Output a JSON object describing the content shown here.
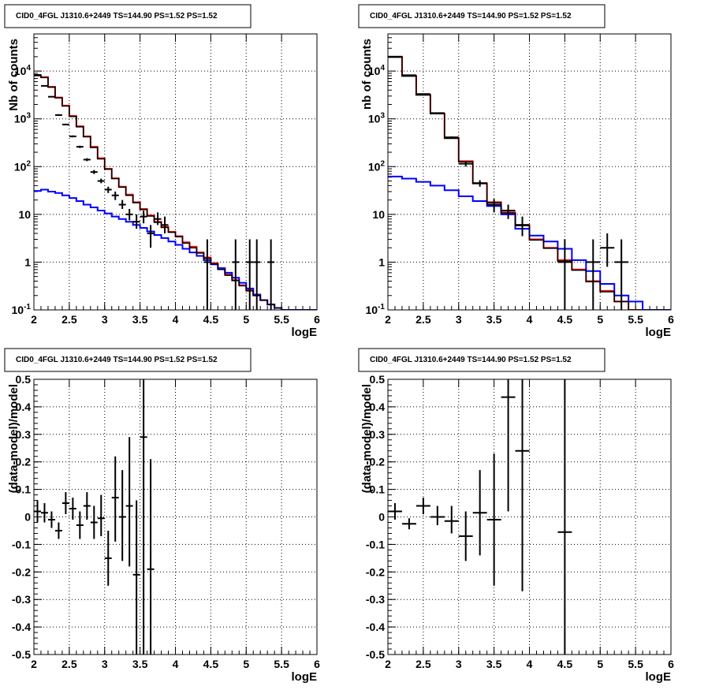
{
  "chart_data": [
    {
      "id": "top-left",
      "type": "line",
      "title": "CID0_4FGL J1310.6+2449 TS=144.90 PS=1.52 PS=1.52",
      "xlabel": "logE",
      "ylabel": "Nb of counts",
      "xlim": [
        2,
        6
      ],
      "ylim": [
        0.1,
        60000
      ],
      "yscale": "log",
      "xticks": [
        "2",
        "2.5",
        "3",
        "3.5",
        "4",
        "4.5",
        "5",
        "5.5",
        "6"
      ],
      "yticks": [
        "10^-1",
        "1",
        "10",
        "10^2",
        "10^3",
        "10^4"
      ],
      "grid": true,
      "binwidth": 0.1,
      "series": [
        {
          "color": "#ff0000",
          "role": "total-model",
          "x": [
            2.0,
            2.1,
            2.2,
            2.3,
            2.4,
            2.5,
            2.6,
            2.7,
            2.8,
            2.9,
            3.0,
            3.1,
            3.2,
            3.3,
            3.4,
            3.5,
            3.6,
            3.7,
            3.8,
            3.9,
            4.0,
            4.1,
            4.2,
            4.3,
            4.4,
            4.5,
            4.6,
            4.7,
            4.8,
            4.9,
            5.0,
            5.1,
            5.2,
            5.3,
            5.4,
            5.5,
            5.6,
            5.7,
            5.8,
            5.9
          ],
          "values": [
            8200,
            7500,
            4700,
            2800,
            1900,
            1150,
            700,
            430,
            260,
            150,
            90,
            57,
            38,
            26,
            18,
            13,
            9.5,
            7,
            5.5,
            4.3,
            3.5,
            2.6,
            2.1,
            1.6,
            1.25,
            0.95,
            0.72,
            0.55,
            0.42,
            0.33,
            0.26,
            0.2,
            0.16,
            0.13,
            0.11,
            0.1,
            0.1,
            0.1,
            0.1,
            0.1
          ]
        },
        {
          "color": "#0000ff",
          "role": "background",
          "x": [
            2.0,
            2.1,
            2.2,
            2.3,
            2.4,
            2.5,
            2.6,
            2.7,
            2.8,
            2.9,
            3.0,
            3.1,
            3.2,
            3.3,
            3.4,
            3.5,
            3.6,
            3.7,
            3.8,
            3.9,
            4.0,
            4.1,
            4.2,
            4.3,
            4.4,
            4.5,
            4.6,
            4.7,
            4.8,
            4.9,
            5.0,
            5.1,
            5.2,
            5.3,
            5.4,
            5.5,
            5.6,
            5.7,
            5.8,
            5.9
          ],
          "values": [
            31,
            33,
            30,
            28,
            25,
            22,
            19,
            16,
            14,
            12,
            10.5,
            9,
            8,
            7,
            6,
            5.2,
            4.4,
            3.7,
            3.2,
            2.7,
            2.3,
            1.9,
            1.6,
            1.35,
            1.1,
            0.9,
            0.75,
            0.6,
            0.47,
            0.37,
            0.28,
            0.21,
            0.16,
            0.13,
            0.11,
            0.1,
            0.1,
            0.1,
            0.1,
            0.1
          ]
        },
        {
          "color": "#000000",
          "role": "data-curve",
          "x": [
            2.0,
            2.1,
            2.2,
            2.3,
            2.4,
            2.5,
            2.6,
            2.7,
            2.8,
            2.9,
            3.0,
            3.1,
            3.2,
            3.3,
            3.4,
            3.5,
            3.6,
            3.7,
            3.8,
            3.9,
            4.0,
            4.1,
            4.2,
            4.3,
            4.4,
            4.5,
            4.6,
            4.7,
            4.8,
            4.9,
            5.0,
            5.1,
            5.2,
            5.3,
            5.4,
            5.5,
            5.6,
            5.7,
            5.8,
            5.9
          ],
          "values": [
            8000,
            7300,
            4600,
            2750,
            1850,
            1120,
            680,
            420,
            250,
            145,
            88,
            56,
            37,
            25,
            17.5,
            12.6,
            9.2,
            6.8,
            5.3,
            4.2,
            3.4,
            2.5,
            2.0,
            1.55,
            1.2,
            0.92,
            0.7,
            0.53,
            0.41,
            0.32,
            0.25,
            0.2,
            0.16,
            0.13,
            0.11,
            0.1,
            0.1,
            0.1,
            0.1,
            0.1
          ]
        }
      ],
      "points": {
        "x": [
          2.05,
          2.15,
          2.25,
          2.35,
          2.45,
          2.55,
          2.65,
          2.75,
          2.85,
          2.95,
          3.05,
          3.15,
          3.25,
          3.35,
          3.45,
          3.55,
          3.65,
          3.75,
          3.85,
          4.45,
          4.85,
          5.05,
          5.15,
          5.35
        ],
        "y": [
          8300,
          4900,
          2900,
          1200,
          760,
          430,
          260,
          140,
          77,
          50,
          33,
          25,
          16,
          10,
          7,
          9,
          4,
          8,
          6,
          1,
          1,
          1,
          1,
          1
        ],
        "ylow": [
          8100,
          4800,
          2850,
          1150,
          730,
          410,
          245,
          130,
          70,
          45,
          28,
          20,
          13,
          7.5,
          5,
          6.5,
          2,
          6,
          4,
          0.1,
          0.1,
          0.1,
          0.1,
          0.1
        ],
        "yhigh": [
          8500,
          5000,
          2950,
          1250,
          790,
          450,
          275,
          150,
          85,
          56,
          38,
          30,
          20,
          13,
          10,
          12,
          6,
          11,
          9,
          3,
          3,
          3,
          3,
          3
        ]
      }
    },
    {
      "id": "top-right",
      "type": "line",
      "title": "CID0_4FGL J1310.6+2449 TS=144.90 PS=1.52 PS=1.52",
      "xlabel": "logE",
      "ylabel": "nb of counts",
      "xlim": [
        2,
        6
      ],
      "ylim": [
        0.1,
        60000
      ],
      "yscale": "log",
      "xticks": [
        "2",
        "2.5",
        "3",
        "3.5",
        "4",
        "4.5",
        "5",
        "5.5",
        "6"
      ],
      "yticks": [
        "10^-1",
        "1",
        "10",
        "10^2",
        "10^3",
        "10^4"
      ],
      "grid": true,
      "binwidth": 0.2,
      "series": [
        {
          "color": "#ff0000",
          "role": "total-model",
          "x": [
            2.0,
            2.2,
            2.4,
            2.6,
            2.8,
            3.0,
            3.2,
            3.4,
            3.6,
            3.8,
            4.0,
            4.2,
            4.4,
            4.6,
            4.8,
            5.0,
            5.2,
            5.4,
            5.6,
            5.8
          ],
          "values": [
            20000,
            8000,
            3200,
            1300,
            400,
            130,
            45,
            18,
            11,
            6,
            3,
            2,
            1.1,
            0.7,
            0.4,
            0.25,
            0.15,
            0.1,
            0.1,
            0.1
          ]
        },
        {
          "color": "#0000ff",
          "role": "background",
          "x": [
            2.0,
            2.2,
            2.4,
            2.6,
            2.8,
            3.0,
            3.2,
            3.4,
            3.6,
            3.8,
            4.0,
            4.2,
            4.4,
            4.6,
            4.8,
            5.0,
            5.2,
            5.4,
            5.6,
            5.8
          ],
          "values": [
            62,
            56,
            48,
            40,
            32,
            24,
            19,
            15,
            10,
            5,
            3.6,
            2.7,
            1.9,
            1.1,
            0.65,
            0.35,
            0.2,
            0.15,
            0.1,
            0.1
          ]
        },
        {
          "color": "#000000",
          "role": "data-curve",
          "x": [
            2.0,
            2.2,
            2.4,
            2.6,
            2.8,
            3.0,
            3.2,
            3.4,
            3.6,
            3.8,
            4.0,
            4.2,
            4.4,
            4.6,
            4.8,
            5.0,
            5.2,
            5.4,
            5.6,
            5.8
          ],
          "values": [
            19500,
            7800,
            3150,
            1280,
            390,
            126,
            44,
            17.5,
            10.7,
            5.8,
            2.9,
            1.95,
            1.05,
            0.68,
            0.39,
            0.24,
            0.15,
            0.1,
            0.1,
            0.1
          ]
        }
      ],
      "points": {
        "x": [
          2.1,
          2.3,
          2.5,
          2.7,
          2.9,
          3.1,
          3.3,
          3.5,
          3.7,
          3.9,
          4.5,
          4.9,
          5.1,
          5.3
        ],
        "y": [
          20000,
          8200,
          3300,
          1320,
          410,
          115,
          45,
          16,
          12,
          6,
          1,
          1,
          2,
          1
        ],
        "ylow": [
          19700,
          8000,
          3200,
          1280,
          390,
          100,
          38,
          11,
          8,
          3.5,
          0.1,
          0.1,
          0.8,
          0.1
        ],
        "yhigh": [
          20300,
          8400,
          3400,
          1360,
          430,
          130,
          52,
          21,
          16,
          9,
          3,
          3,
          4,
          3
        ]
      }
    },
    {
      "id": "bottom-left",
      "type": "scatter",
      "title": "CID0_4FGL J1310.6+2449 TS=144.90 PS=1.52 PS=1.52",
      "xlabel": "logE",
      "ylabel": "(data-model)/model",
      "xlim": [
        2,
        6
      ],
      "ylim": [
        -0.5,
        0.5
      ],
      "xticks": [
        "2",
        "2.5",
        "3",
        "3.5",
        "4",
        "4.5",
        "5",
        "5.5",
        "6"
      ],
      "yticks": [
        "-0.5",
        "-0.4",
        "-0.3",
        "-0.2",
        "-0.1",
        "0",
        "0.1",
        "0.2",
        "0.3",
        "0.4",
        "0.5"
      ],
      "grid": true,
      "binwidth": 0.1,
      "points": {
        "x": [
          2.05,
          2.15,
          2.25,
          2.35,
          2.45,
          2.55,
          2.65,
          2.75,
          2.85,
          2.95,
          3.05,
          3.15,
          3.25,
          3.35,
          3.45,
          3.55,
          3.65
        ],
        "y": [
          0.02,
          0.015,
          -0.01,
          -0.05,
          0.05,
          0.03,
          -0.03,
          0.04,
          -0.02,
          -0.005,
          -0.15,
          0.07,
          0.0,
          0.04,
          -0.21,
          0.29,
          -0.19
        ],
        "ylow": [
          -0.02,
          -0.02,
          -0.04,
          -0.08,
          0.01,
          -0.01,
          -0.08,
          -0.01,
          -0.08,
          -0.07,
          -0.25,
          -0.09,
          -0.16,
          -0.18,
          -0.5,
          -0.5,
          -0.5
        ],
        "yhigh": [
          0.06,
          0.05,
          0.02,
          -0.02,
          0.09,
          0.07,
          0.02,
          0.09,
          0.04,
          0.08,
          -0.05,
          0.22,
          0.17,
          0.29,
          0.06,
          0.5,
          0.21
        ]
      }
    },
    {
      "id": "bottom-right",
      "type": "scatter",
      "title": "CID0_4FGL J1310.6+2449 TS=144.90 PS=1.52 PS=1.52",
      "xlabel": "logE",
      "ylabel": "(data-model)/model",
      "xlim": [
        2,
        6
      ],
      "ylim": [
        -0.5,
        0.5
      ],
      "xticks": [
        "2",
        "2.5",
        "3",
        "3.5",
        "4",
        "4.5",
        "5",
        "5.5",
        "6"
      ],
      "yticks": [
        "-0.5",
        "-0.4",
        "-0.3",
        "-0.2",
        "-0.1",
        "0",
        "0.1",
        "0.2",
        "0.3",
        "0.4",
        "0.5"
      ],
      "grid": true,
      "binwidth": 0.2,
      "points": {
        "x": [
          2.1,
          2.3,
          2.5,
          2.7,
          2.9,
          3.1,
          3.3,
          3.5,
          3.7,
          3.9,
          4.5
        ],
        "y": [
          0.02,
          -0.025,
          0.04,
          0.0,
          -0.015,
          -0.07,
          0.015,
          -0.01,
          0.435,
          0.24,
          -0.055
        ],
        "ylow": [
          -0.01,
          -0.045,
          0.01,
          -0.03,
          -0.06,
          -0.16,
          -0.14,
          -0.25,
          0.02,
          -0.27,
          -0.5
        ],
        "yhigh": [
          0.05,
          -0.005,
          0.07,
          0.04,
          0.04,
          0.02,
          0.17,
          0.23,
          0.5,
          0.5,
          0.5
        ]
      }
    }
  ]
}
